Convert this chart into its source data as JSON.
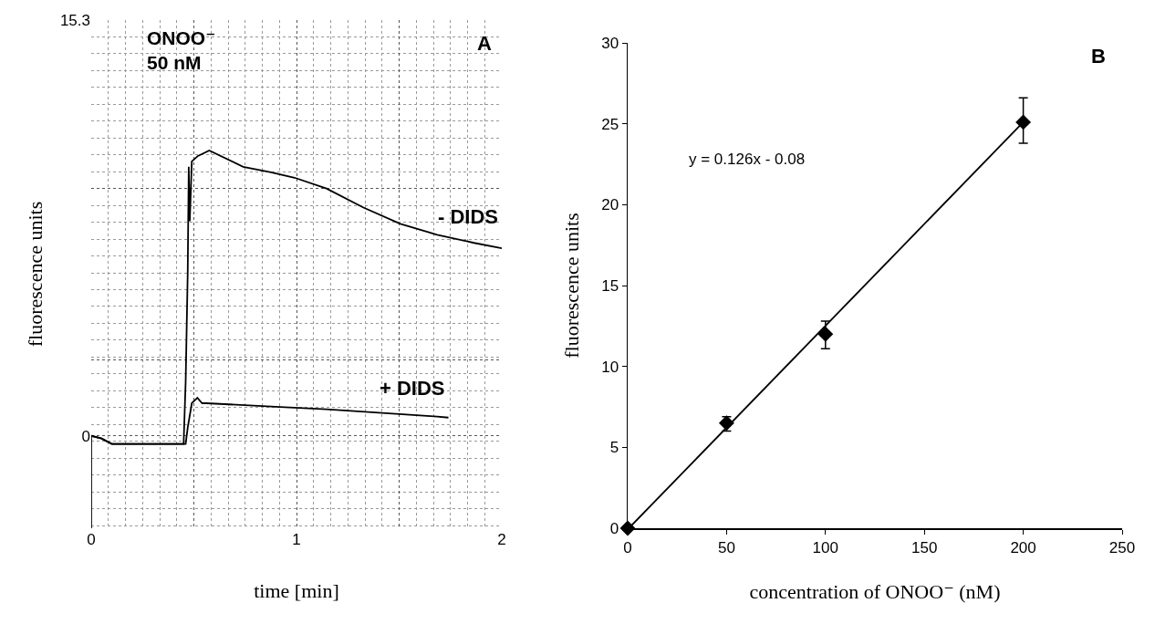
{
  "chart_data": [
    {
      "type": "line",
      "xlabel": "time [min]",
      "ylabel": "fluorescence units",
      "annotations": [
        "ONOO⁻\n50 nM",
        "A"
      ],
      "series": [
        {
          "name": "- DIDS",
          "color": "#000000",
          "x": [
            0,
            0,
            0.05,
            0.1,
            0.2,
            0.3,
            0.4,
            0.45,
            0.46,
            0.47,
            0.475,
            0.48,
            0.49,
            0.52,
            0.575,
            0.74,
            0.876,
            0.99,
            1.146,
            1.326,
            1.506,
            1.685,
            1.865,
            2.0
          ],
          "values": [
            -3.4,
            0,
            -0.1,
            -0.3,
            -0.3,
            -0.3,
            -0.3,
            -0.3,
            2,
            6,
            9.9,
            7.9,
            10.1,
            10.3,
            10.5,
            9.9,
            9.7,
            9.5,
            9.1,
            8.4,
            7.8,
            7.4,
            7.1,
            6.9
          ]
        },
        {
          "name": "+ DIDS",
          "color": "#000000",
          "x": [
            0,
            0.05,
            0.1,
            0.2,
            0.3,
            0.4,
            0.46,
            0.47,
            0.49,
            0.517,
            0.54,
            0.56,
            0.876,
            1.146,
            1.416,
            1.685,
            1.74
          ],
          "values": [
            0,
            -0.1,
            -0.3,
            -0.3,
            -0.3,
            -0.3,
            -0.3,
            0.3,
            1.2,
            1.4,
            1.2,
            1.2,
            1.08,
            0.98,
            0.84,
            0.71,
            0.67
          ]
        }
      ],
      "xlim": [
        0,
        2
      ],
      "xticks": [
        0,
        {
          "value": 0.5,
          "label": null
        },
        1,
        {
          "value": 1.5,
          "label": null
        },
        2
      ],
      "ylim": [
        -3.4,
        15.3
      ],
      "yticks": [
        15.3,
        {
          "value": 9.1,
          "label": null
        },
        {
          "value": 2.8,
          "label": null
        },
        0
      ],
      "grid": true,
      "marker": "none",
      "line_style": "solid"
    },
    {
      "type": "scatter",
      "xlabel": "concentration of ONOO⁻ (nM)",
      "ylabel": "fluorescence units",
      "annotations": [
        "y = 0.126x - 0.08",
        "B"
      ],
      "x": [
        0,
        50,
        100,
        200
      ],
      "values": [
        0,
        6.5,
        12,
        25.1
      ],
      "color": "#000000",
      "errors": [
        null,
        [
          6.0,
          6.9
        ],
        [
          11.1,
          12.8
        ],
        [
          23.8,
          26.6
        ]
      ],
      "series": [
        {
          "type": "line",
          "color": "#000000",
          "x": [
            0.6,
            200
          ],
          "values": [
            0,
            25.1
          ]
        }
      ],
      "xlim": [
        0,
        250
      ],
      "xticks": [
        0,
        50,
        100,
        150,
        200,
        250
      ],
      "ylim": [
        0,
        30
      ],
      "yticks": [
        0,
        5,
        10,
        15,
        20,
        25,
        30
      ],
      "grid": false,
      "marker": "diamond"
    }
  ]
}
